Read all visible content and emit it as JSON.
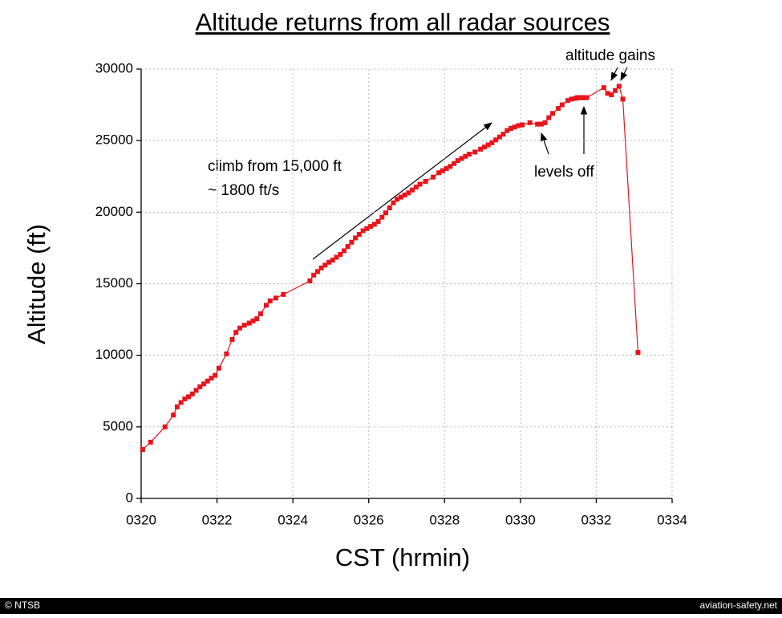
{
  "chart_data": {
    "type": "line",
    "title": "Altitude returns from all radar sources",
    "x_label": "CST (hrmin)",
    "y_label": "Altitude (ft)",
    "xlim": [
      320,
      334
    ],
    "xticks": [
      {
        "value": 320,
        "label": "0320"
      },
      {
        "value": 322,
        "label": "0322"
      },
      {
        "value": 324,
        "label": "0324"
      },
      {
        "value": 326,
        "label": "0326"
      },
      {
        "value": 328,
        "label": "0328"
      },
      {
        "value": 330,
        "label": "0330"
      },
      {
        "value": 332,
        "label": "0332"
      },
      {
        "value": 334,
        "label": "0334"
      }
    ],
    "ylim": [
      0,
      30000
    ],
    "yticks": [
      0,
      5000,
      10000,
      15000,
      20000,
      25000,
      30000
    ],
    "grid": true,
    "annotations": [
      "climb from 15,000 ft",
      "~ 1800 ft/s",
      "levels off",
      "altitude gains"
    ],
    "source": "© NTSB",
    "site": "aviation-safety.net",
    "series": [
      {
        "name": "Altitude",
        "color": "#e8141b",
        "x": [
          320.04,
          320.25,
          320.63,
          320.85,
          320.95,
          321.05,
          321.15,
          321.25,
          321.35,
          321.45,
          321.55,
          321.65,
          321.75,
          321.85,
          321.95,
          322.05,
          322.25,
          322.4,
          322.5,
          322.6,
          322.72,
          322.85,
          322.95,
          323.05,
          323.15,
          323.3,
          323.4,
          323.55,
          323.75,
          324.45,
          324.55,
          324.65,
          324.75,
          324.85,
          324.95,
          325.05,
          325.15,
          325.25,
          325.35,
          325.45,
          325.55,
          325.65,
          325.75,
          325.85,
          325.95,
          326.05,
          326.15,
          326.25,
          326.35,
          326.45,
          326.55,
          326.65,
          326.75,
          326.85,
          326.95,
          327.05,
          327.15,
          327.25,
          327.35,
          327.5,
          327.7,
          327.85,
          327.95,
          328.05,
          328.15,
          328.25,
          328.35,
          328.45,
          328.55,
          328.65,
          328.8,
          328.95,
          329.05,
          329.15,
          329.25,
          329.35,
          329.45,
          329.55,
          329.65,
          329.75,
          329.85,
          329.95,
          330.05,
          330.25,
          330.45,
          330.55,
          330.65,
          330.75,
          330.85,
          331.0,
          331.1,
          331.25,
          331.35,
          331.45,
          331.5,
          331.55,
          331.6,
          331.65,
          331.7,
          331.75,
          332.2,
          332.3,
          332.4,
          332.5,
          332.6,
          332.7,
          333.1
        ],
        "values": [
          3420,
          3930,
          5000,
          5830,
          6400,
          6700,
          6950,
          7100,
          7300,
          7550,
          7800,
          8000,
          8200,
          8400,
          8600,
          9100,
          10100,
          11100,
          11600,
          11900,
          12100,
          12250,
          12400,
          12550,
          12900,
          13500,
          13800,
          14000,
          14250,
          15200,
          15600,
          15850,
          16100,
          16300,
          16500,
          16650,
          16850,
          17050,
          17300,
          17600,
          17900,
          18200,
          18450,
          18700,
          18850,
          19000,
          19150,
          19350,
          19650,
          19950,
          20300,
          20650,
          20900,
          21050,
          21200,
          21350,
          21550,
          21750,
          21950,
          22150,
          22450,
          22750,
          22900,
          23050,
          23200,
          23400,
          23600,
          23750,
          23900,
          24050,
          24200,
          24400,
          24550,
          24700,
          24850,
          25050,
          25250,
          25450,
          25700,
          25850,
          25950,
          26050,
          26100,
          26250,
          26150,
          26150,
          26250,
          26600,
          26900,
          27250,
          27500,
          27800,
          27900,
          27950,
          28000,
          28000,
          28000,
          28000,
          28000,
          28000,
          28700,
          28300,
          28200,
          28500,
          28800,
          27900,
          10200
        ]
      }
    ]
  }
}
